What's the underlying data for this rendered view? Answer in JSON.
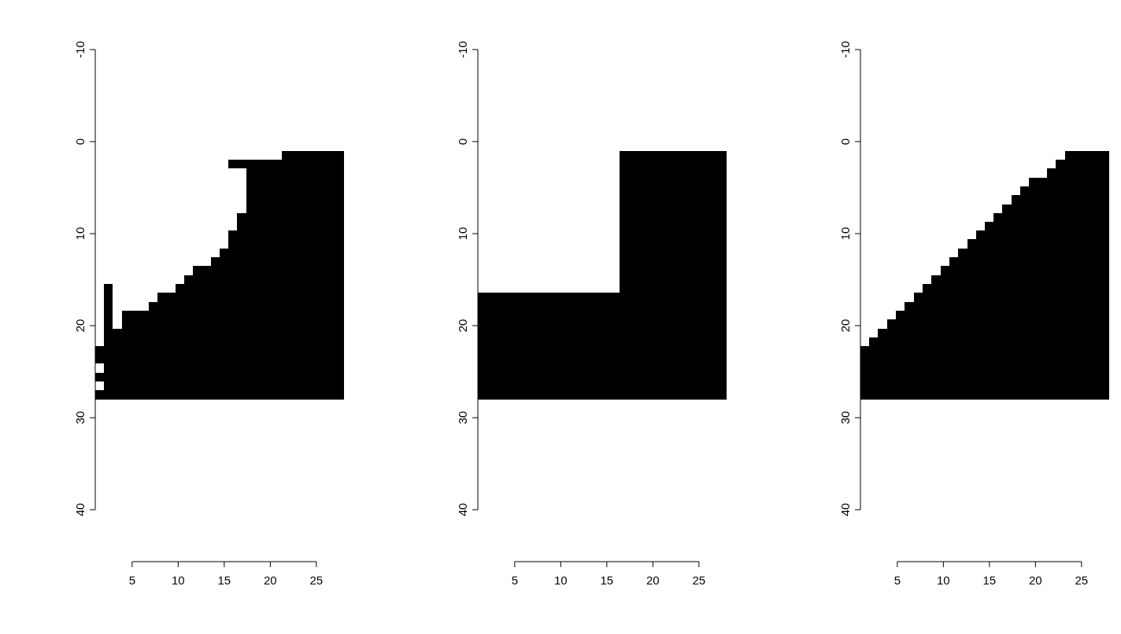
{
  "chart_data": [
    {
      "type": "bar",
      "x": [
        1.5,
        2.4,
        3.4,
        4.4,
        5.3,
        6.3,
        7.3,
        8.2,
        9.2,
        10.2,
        11.1,
        12.1,
        13.1,
        14.0,
        15.0,
        15.9,
        16.9,
        17.9,
        18.8,
        19.8,
        20.8,
        21.7,
        22.7,
        23.7,
        24.6,
        25.6,
        26.6,
        27.5
      ],
      "xlim": [
        1,
        28
      ],
      "xticks": [
        5,
        10,
        15,
        20,
        25
      ],
      "ylim": [
        40,
        -10
      ],
      "yticks": [
        -10,
        0,
        10,
        20,
        30,
        40
      ],
      "series": [
        {
          "color": "#000000",
          "base": [
            27.0,
            15.5,
            20.3,
            18.4,
            18.4,
            18.4,
            17.4,
            16.4,
            16.4,
            15.5,
            14.5,
            13.5,
            13.5,
            12.6,
            11.6,
            9.7,
            7.8,
            2.0,
            2.0,
            2.0,
            2.0,
            1.0,
            1.0,
            1.0,
            1.0,
            1.0,
            1.0,
            1.0
          ],
          "values": [
            1.0,
            12.5,
            7.7,
            9.6,
            9.6,
            9.6,
            10.6,
            11.6,
            11.6,
            12.5,
            13.5,
            14.5,
            14.5,
            15.4,
            16.4,
            18.3,
            20.2,
            26,
            26,
            26,
            26,
            27,
            27,
            27,
            27,
            27,
            27,
            27
          ]
        },
        {
          "color": "#000000",
          "base": [
            25.1,
            null,
            null,
            null,
            null,
            null,
            null,
            null,
            null,
            null,
            null,
            null,
            null,
            null,
            null,
            2.0,
            2.0,
            null,
            null,
            null,
            null,
            null,
            null,
            null,
            null,
            null,
            null,
            null
          ],
          "values": [
            1.0,
            null,
            null,
            null,
            null,
            null,
            null,
            null,
            null,
            null,
            null,
            null,
            null,
            null,
            null,
            0.9,
            0.9,
            null,
            null,
            null,
            null,
            null,
            null,
            null,
            null,
            null,
            null,
            null
          ]
        },
        {
          "color": "#000000",
          "base": [
            22.2,
            null,
            null,
            null,
            null,
            null,
            null,
            null,
            null,
            null,
            null,
            null,
            null,
            null,
            null,
            null,
            null,
            null,
            null,
            null,
            null,
            null,
            null,
            null,
            null,
            null,
            null,
            null
          ],
          "values": [
            1.9,
            null,
            null,
            null,
            null,
            null,
            null,
            null,
            null,
            null,
            null,
            null,
            null,
            null,
            null,
            null,
            null,
            null,
            null,
            null,
            null,
            null,
            null,
            null,
            null,
            null,
            null,
            null
          ]
        }
      ]
    },
    {
      "type": "bar",
      "x": [
        1.5,
        2.4,
        3.4,
        4.4,
        5.3,
        6.3,
        7.3,
        8.2,
        9.2,
        10.2,
        11.1,
        12.1,
        13.1,
        14.0,
        15.0,
        15.9,
        16.9,
        17.9,
        18.8,
        19.8,
        20.8,
        21.7,
        22.7,
        23.7,
        24.6,
        25.6,
        26.6,
        27.5
      ],
      "xlim": [
        1,
        28
      ],
      "xticks": [
        5,
        10,
        15,
        20,
        25
      ],
      "ylim": [
        40,
        -10
      ],
      "yticks": [
        -10,
        0,
        10,
        20,
        30,
        40
      ],
      "series": [
        {
          "color": "#000000",
          "base": [
            16.4,
            16.4,
            16.4,
            16.4,
            16.4,
            16.4,
            16.4,
            16.4,
            16.4,
            16.4,
            16.4,
            16.4,
            16.4,
            16.4,
            16.4,
            16.4,
            1.0,
            1.0,
            1.0,
            1.0,
            1.0,
            1.0,
            1.0,
            1.0,
            1.0,
            1.0,
            1.0,
            1.0
          ],
          "values": [
            11.6,
            11.6,
            11.6,
            11.6,
            11.6,
            11.6,
            11.6,
            11.6,
            11.6,
            11.6,
            11.6,
            11.6,
            11.6,
            11.6,
            11.6,
            11.6,
            27,
            27,
            27,
            27,
            27,
            27,
            27,
            27,
            27,
            27,
            27,
            27
          ]
        }
      ]
    },
    {
      "type": "bar",
      "x": [
        1.5,
        2.4,
        3.4,
        4.4,
        5.3,
        6.3,
        7.3,
        8.2,
        9.2,
        10.2,
        11.1,
        12.1,
        13.1,
        14.0,
        15.0,
        15.9,
        16.9,
        17.9,
        18.8,
        19.8,
        20.8,
        21.7,
        22.7,
        23.7,
        24.6,
        25.6,
        26.6,
        27.5
      ],
      "xlim": [
        1,
        28
      ],
      "xticks": [
        5,
        10,
        15,
        20,
        25
      ],
      "ylim": [
        40,
        -10
      ],
      "yticks": [
        -10,
        0,
        10,
        20,
        30,
        40
      ],
      "series": [
        {
          "color": "#000000",
          "base": [
            22.2,
            21.3,
            20.3,
            19.3,
            18.4,
            17.4,
            16.4,
            15.5,
            14.5,
            13.5,
            12.6,
            11.6,
            10.6,
            9.7,
            8.7,
            7.8,
            6.8,
            5.8,
            4.9,
            3.9,
            3.9,
            2.9,
            2.0,
            1.0,
            1.0,
            1.0,
            1.0,
            1.0
          ],
          "values": [
            5.8,
            6.7,
            7.7,
            8.7,
            9.6,
            10.6,
            11.6,
            12.5,
            13.5,
            14.5,
            15.4,
            16.4,
            17.4,
            18.3,
            19.3,
            20.2,
            21.2,
            22.2,
            23.1,
            24.1,
            24.1,
            25.1,
            26,
            27,
            27,
            27,
            27,
            27
          ]
        }
      ]
    }
  ]
}
